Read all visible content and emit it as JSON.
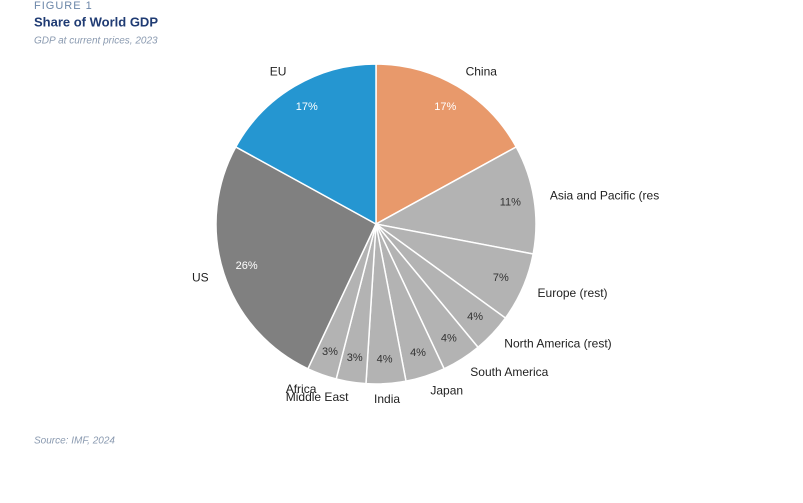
{
  "header": {
    "figure": "FIGURE 1",
    "title": "Share of World GDP",
    "subtitle": "GDP at current prices, 2023"
  },
  "chart_data": {
    "type": "pie",
    "categories": [
      "China",
      "Asia and Pacific (res",
      "Europe (rest)",
      "North America (rest)",
      "South America",
      "Japan",
      "India",
      "Middle East",
      "Africa",
      "US",
      "EU"
    ],
    "values": [
      17,
      11,
      7,
      4,
      4,
      4,
      4,
      3,
      3,
      26,
      17
    ],
    "value_labels": [
      "17%",
      "11%",
      "7%",
      "4%",
      "4%",
      "4%",
      "4%",
      "3%",
      "3%",
      "26%",
      "17%"
    ],
    "colors": [
      "#e8996b",
      "#b3b3b3",
      "#b3b3b3",
      "#b3b3b3",
      "#b3b3b3",
      "#b3b3b3",
      "#b3b3b3",
      "#b3b3b3",
      "#b3b3b3",
      "#808080",
      "#2596d1"
    ]
  },
  "footer": {
    "source": "Source: IMF, 2024"
  }
}
